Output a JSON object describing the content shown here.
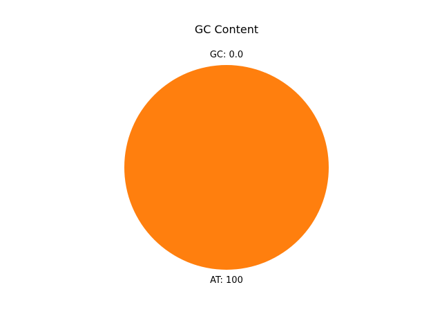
{
  "chart_data": {
    "type": "pie",
    "title": "GC Content",
    "categories": [
      "GC",
      "AT"
    ],
    "values": [
      0.0,
      100
    ],
    "labels": [
      "GC: 0.0",
      "AT: 100"
    ],
    "colors": [
      "#1f77b4",
      "#ff7f0e"
    ],
    "start_angle_deg": 90,
    "legend": "none"
  }
}
